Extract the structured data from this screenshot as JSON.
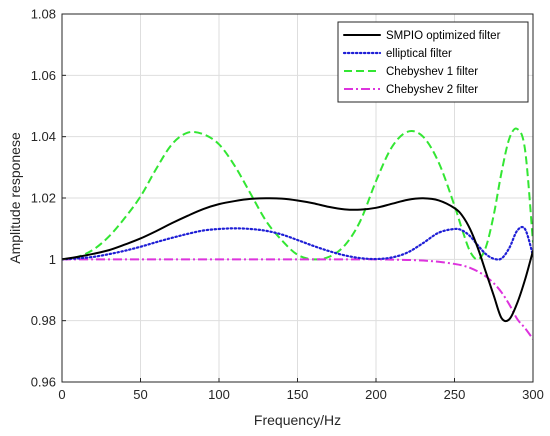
{
  "chart_data": {
    "type": "line",
    "title": "",
    "xlabel": "Frequency/Hz",
    "ylabel": "Amplitude responese",
    "xlim": [
      0,
      300
    ],
    "ylim": [
      0.96,
      1.08
    ],
    "xticks": [
      "0",
      "50",
      "100",
      "150",
      "200",
      "250",
      "300"
    ],
    "yticks": [
      "0.96",
      "0.98",
      "1",
      "1.02",
      "1.04",
      "1.06",
      "1.08"
    ],
    "grid": true,
    "legend_position": "top-right",
    "series": [
      {
        "name": "SMPIO optimized filter",
        "color": "#000000",
        "style": "solid",
        "x": [
          0,
          10,
          20,
          30,
          40,
          50,
          60,
          70,
          80,
          90,
          100,
          110,
          120,
          130,
          140,
          150,
          160,
          170,
          180,
          190,
          200,
          210,
          220,
          230,
          240,
          250,
          255,
          260,
          265,
          270,
          275,
          280,
          285,
          290,
          295,
          300
        ],
        "y": [
          1.0,
          1.0008,
          1.0018,
          1.003,
          1.0048,
          1.0068,
          1.0092,
          1.0118,
          1.0142,
          1.0164,
          1.018,
          1.019,
          1.0197,
          1.0199,
          1.0198,
          1.0192,
          1.0183,
          1.0171,
          1.0163,
          1.0162,
          1.0168,
          1.0181,
          1.0194,
          1.0199,
          1.0192,
          1.0167,
          1.0142,
          1.0098,
          1.0035,
          0.9958,
          0.9882,
          0.9808,
          0.9805,
          0.9858,
          0.9935,
          1.0028
        ]
      },
      {
        "name": "elliptical filter",
        "color": "#1f1fd6",
        "style": "dotted",
        "x": [
          0,
          10,
          20,
          30,
          40,
          50,
          60,
          70,
          80,
          90,
          100,
          110,
          120,
          130,
          140,
          150,
          160,
          170,
          180,
          190,
          200,
          210,
          220,
          230,
          240,
          250,
          255,
          260,
          265,
          270,
          275,
          280,
          285,
          290,
          295,
          300
        ],
        "y": [
          1.0,
          1.0003,
          1.0008,
          1.0017,
          1.0028,
          1.0041,
          1.0056,
          1.007,
          1.0083,
          1.0094,
          1.0099,
          1.0101,
          1.0099,
          1.0093,
          1.0081,
          1.0063,
          1.0044,
          1.0027,
          1.0013,
          1.0004,
          1.0001,
          1.0006,
          1.0022,
          1.0053,
          1.0087,
          1.0099,
          1.0094,
          1.0075,
          1.0045,
          1.0017,
          1.0002,
          1.0003,
          1.0038,
          1.0094,
          1.0098,
          1.0012
        ]
      },
      {
        "name": "Chebyshev 1 filter",
        "color": "#33e633",
        "style": "dashed",
        "x": [
          0,
          10,
          20,
          30,
          40,
          50,
          60,
          70,
          80,
          90,
          100,
          110,
          120,
          130,
          140,
          150,
          160,
          170,
          180,
          190,
          200,
          210,
          220,
          230,
          240,
          250,
          255,
          260,
          265,
          270,
          275,
          280,
          285,
          290,
          295,
          300
        ],
        "y": [
          1.0,
          1.0008,
          1.0032,
          1.0075,
          1.0135,
          1.0205,
          1.0295,
          1.0375,
          1.0413,
          1.0408,
          1.0375,
          1.0305,
          1.0215,
          1.0125,
          1.0062,
          1.0015,
          1.0,
          1.0008,
          1.0045,
          1.0125,
          1.0255,
          1.0365,
          1.0416,
          1.04,
          1.0315,
          1.0175,
          1.0095,
          1.0025,
          1.0,
          1.004,
          1.0145,
          1.0285,
          1.0395,
          1.0425,
          1.0355,
          1.0055
        ]
      },
      {
        "name": "Chebyshev 2 filter",
        "color": "#dd33dd",
        "style": "dashdot",
        "x": [
          0,
          20,
          40,
          60,
          80,
          100,
          120,
          140,
          160,
          180,
          200,
          210,
          220,
          230,
          240,
          250,
          255,
          260,
          265,
          270,
          275,
          280,
          285,
          290,
          295,
          300
        ],
        "y": [
          1.0,
          1.0,
          1.0,
          1.0,
          1.0,
          1.0,
          1.0,
          1.0,
          1.0,
          1.0,
          1.0,
          0.9999,
          0.9998,
          0.9996,
          0.9992,
          0.9985,
          0.998,
          0.9972,
          0.996,
          0.9944,
          0.9922,
          0.9892,
          0.9852,
          0.9805,
          0.9775,
          0.974
        ]
      }
    ]
  }
}
